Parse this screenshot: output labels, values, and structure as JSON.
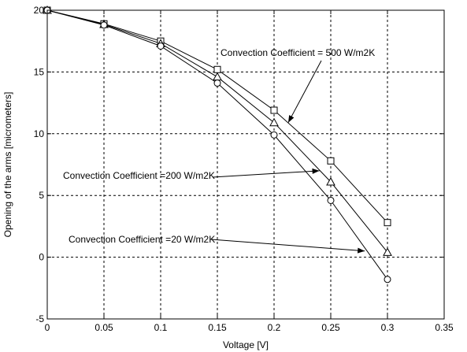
{
  "chart_data": {
    "type": "line",
    "title": "",
    "xlabel": "Voltage [V]",
    "ylabel": "Opening of the arms [micrometers]",
    "xlim": [
      0,
      0.35
    ],
    "ylim": [
      -5,
      20
    ],
    "x_ticks": [
      0,
      0.05,
      0.1,
      0.15,
      0.2,
      0.25,
      0.3,
      0.35
    ],
    "x_tick_labels": [
      "0",
      "0.05",
      "0.1",
      "0.15",
      "0.2",
      "0.25",
      "0.3",
      "0.35"
    ],
    "y_ticks": [
      -5,
      0,
      5,
      10,
      15,
      20
    ],
    "y_tick_labels": [
      "-5",
      "0",
      "5",
      "10",
      "15",
      "20"
    ],
    "grid": true,
    "x": [
      0,
      0.05,
      0.1,
      0.15,
      0.2,
      0.25,
      0.3
    ],
    "series": [
      {
        "marker": "square",
        "values": [
          20,
          18.9,
          17.5,
          15.2,
          11.9,
          7.8,
          2.8
        ]
      },
      {
        "marker": "triangle",
        "values": [
          20,
          18.85,
          17.3,
          14.6,
          10.9,
          6.1,
          0.4
        ]
      },
      {
        "marker": "circle",
        "values": [
          20,
          18.8,
          17.1,
          14.1,
          9.9,
          4.6,
          -1.8
        ]
      }
    ],
    "annotations": [
      {
        "text": "Convection Coefficient = 500 W/m2K",
        "series": 0,
        "target": [
          0.2125,
          10.9
        ]
      },
      {
        "text": "Convection Coefficient =200 W/m2K",
        "series": 1,
        "target": [
          0.24,
          7.0
        ]
      },
      {
        "text": "Convection Coefficient =20 W/m2K",
        "series": 2,
        "target": [
          0.28,
          0.5
        ]
      }
    ]
  }
}
